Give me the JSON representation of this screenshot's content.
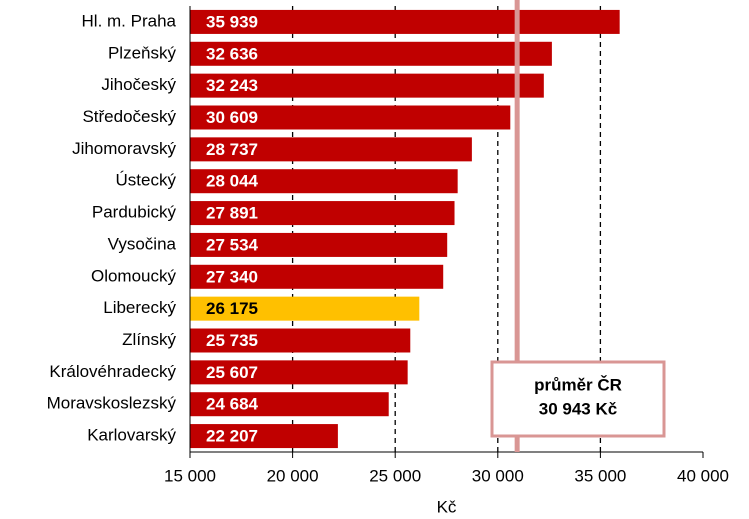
{
  "chart_data": {
    "type": "bar",
    "orientation": "horizontal",
    "categories": [
      "Hl. m. Praha",
      "Plzeňský",
      "Jihočeský",
      "Středočeský",
      "Jihomoravský",
      "Ústecký",
      "Pardubický",
      "Vysočina",
      "Olomoucký",
      "Liberecký",
      "Zlínský",
      "Královéhradecký",
      "Moravskoslezský",
      "Karlovarský"
    ],
    "values": [
      35939,
      32636,
      32243,
      30609,
      28737,
      28044,
      27891,
      27534,
      27340,
      26175,
      25735,
      25607,
      24684,
      22207
    ],
    "value_labels": [
      "35 939",
      "32 636",
      "32 243",
      "30 609",
      "28 737",
      "28 044",
      "27 891",
      "27 534",
      "27 340",
      "26 175",
      "25 735",
      "25 607",
      "24 684",
      "22 207"
    ],
    "colors": [
      "#c00000",
      "#c00000",
      "#c00000",
      "#c00000",
      "#c00000",
      "#c00000",
      "#c00000",
      "#c00000",
      "#c00000",
      "#ffc000",
      "#c00000",
      "#c00000",
      "#c00000",
      "#c00000"
    ],
    "xlim": [
      15000,
      40000
    ],
    "xticks": [
      {
        "value": 15000,
        "label": "15 000"
      },
      {
        "value": 20000,
        "label": "20 000"
      },
      {
        "value": 25000,
        "label": "25 000"
      },
      {
        "value": 30000,
        "label": "30 000"
      },
      {
        "value": 35000,
        "label": "35 000"
      },
      {
        "value": 40000,
        "label": "40 000"
      }
    ],
    "grid": true,
    "x_label": "Kč",
    "average": {
      "value": 30943,
      "color": "#d99694",
      "label_lines": [
        "průměr ČR",
        "30 943 Kč"
      ]
    }
  }
}
